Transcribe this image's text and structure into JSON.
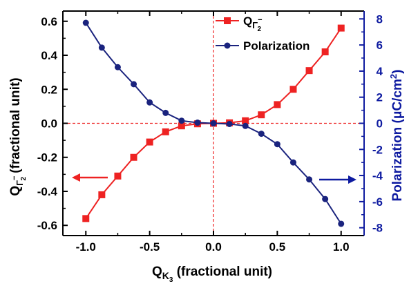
{
  "chart_data": {
    "type": "line",
    "x": [
      -1.0,
      -0.875,
      -0.75,
      -0.625,
      -0.5,
      -0.375,
      -0.25,
      -0.125,
      0.0,
      0.125,
      0.25,
      0.375,
      0.5,
      0.625,
      0.75,
      0.875,
      1.0
    ],
    "x_tick_labels": [
      "-1.0",
      "-0.5",
      "0.0",
      "0.5",
      "1.0"
    ],
    "x_ticks": [
      -1.0,
      -0.5,
      0.0,
      0.5,
      1.0
    ],
    "xlim": [
      -1.18,
      1.18
    ],
    "xlabel": {
      "main": "Q",
      "sub": "K",
      "subsub": "3",
      "rest": " (fractional unit)"
    },
    "y_left": {
      "label": {
        "main": "Q",
        "sub": "Γ",
        "sup": "−",
        "subsub": "2",
        "rest": " (fractional unit)"
      },
      "ylim": [
        -0.66,
        0.66
      ],
      "ticks": [
        -0.6,
        -0.4,
        -0.2,
        0.0,
        0.2,
        0.4,
        0.6
      ],
      "tick_labels": [
        "-0.6",
        "-0.4",
        "-0.2",
        "0.0",
        "0.2",
        "0.4",
        "0.6"
      ]
    },
    "y_right": {
      "label": "Polarization (μC/cm",
      "label_sup": "2",
      "label_close": ")",
      "ylim": [
        -8.6,
        8.6
      ],
      "ticks": [
        -8,
        -6,
        -4,
        -2,
        0,
        2,
        4,
        6,
        8
      ],
      "tick_labels": [
        "-8",
        "-6",
        "-4",
        "-2",
        "0",
        "2",
        "4",
        "6",
        "8"
      ]
    },
    "series": [
      {
        "name": "Q",
        "name_sub": "Γ",
        "name_sup": "−",
        "name_subsub": "2",
        "axis": "left",
        "marker": "square",
        "color": "#ee2222",
        "values": [
          -0.56,
          -0.42,
          -0.31,
          -0.2,
          -0.11,
          -0.05,
          -0.015,
          -0.003,
          0.0,
          0.003,
          0.015,
          0.05,
          0.11,
          0.2,
          0.31,
          0.42,
          0.56
        ]
      },
      {
        "name": "Polarization",
        "axis": "right",
        "marker": "circle",
        "color": "#1a237e",
        "values": [
          7.7,
          5.8,
          4.3,
          3.0,
          1.6,
          0.8,
          0.2,
          0.05,
          0.0,
          -0.05,
          -0.2,
          -0.8,
          -1.6,
          -3.0,
          -4.3,
          -5.8,
          -7.7
        ]
      }
    ],
    "reference_lines": {
      "x": 0.0,
      "y": 0.0,
      "color": "#ee2222",
      "style": "dashed"
    },
    "legend_placement": "top-right",
    "colors": {
      "left_axis": "#000000",
      "right_axis": "#0d1aa0"
    }
  }
}
